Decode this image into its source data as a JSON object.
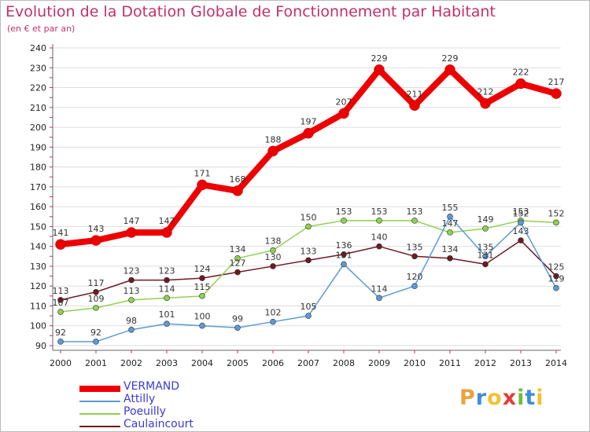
{
  "header": {
    "title": "Evolution de la Dotation Globale de Fonctionnement par Habitant",
    "subtitle": "(en € et par an)"
  },
  "brand": {
    "text": "Proxiti",
    "colors": [
      "#e8a33d",
      "#3d8ed8",
      "#f2c12e",
      "#e8393d",
      "#6cbf3c",
      "#3d8ed8",
      "#f2c12e"
    ]
  },
  "chart_data": {
    "type": "line",
    "title": "Evolution de la Dotation Globale de Fonctionnement par Habitant",
    "subtitle": "(en € et par an)",
    "x": [
      "2000",
      "2001",
      "2002",
      "2003",
      "2004",
      "2005",
      "2006",
      "2007",
      "2008",
      "2009",
      "2010",
      "2011",
      "2012",
      "2013",
      "2014"
    ],
    "ylim": [
      90,
      240
    ],
    "yticks": [
      90,
      100,
      110,
      120,
      130,
      140,
      150,
      160,
      170,
      180,
      190,
      200,
      210,
      220,
      230,
      240
    ],
    "grid": "horizontal",
    "legend": "bottom-left",
    "series": [
      {
        "name": "VERMAND",
        "color": "#ee0000",
        "values": [
          141,
          143,
          147,
          147,
          171,
          168,
          188,
          197,
          207,
          229,
          211,
          229,
          212,
          222,
          217
        ]
      },
      {
        "name": "Attilly",
        "color": "#5b9bd5",
        "values": [
          92,
          92,
          98,
          101,
          100,
          99,
          102,
          105,
          131,
          114,
          120,
          155,
          135,
          152,
          119
        ]
      },
      {
        "name": "Poeuilly",
        "color": "#8fd14f",
        "values": [
          107,
          109,
          113,
          114,
          115,
          134,
          138,
          150,
          153,
          153,
          153,
          147,
          149,
          153,
          152
        ]
      },
      {
        "name": "Caulaincourt",
        "color": "#6e1a24",
        "values": [
          113,
          117,
          123,
          123,
          124,
          127,
          130,
          133,
          136,
          140,
          135,
          134,
          131,
          143,
          125
        ]
      }
    ]
  }
}
